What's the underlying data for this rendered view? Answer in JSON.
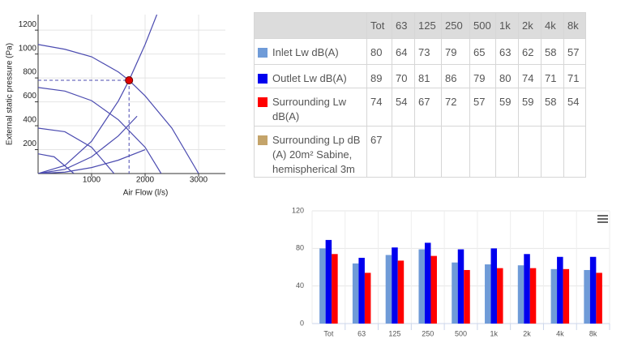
{
  "chart_data": [
    {
      "type": "line",
      "xlabel": "Air Flow (l/s)",
      "ylabel": "External static pressure (Pa)",
      "xlim": [
        0,
        3500
      ],
      "ylim": [
        0,
        1330
      ],
      "xticks": [
        1000,
        2000,
        3000
      ],
      "yticks": [
        200,
        400,
        600,
        800,
        1000,
        1200
      ],
      "grid": true,
      "color": "#4b4bb0",
      "series": [
        {
          "x": [
            0,
            500,
            1000,
            1500,
            1700,
            2000,
            2500,
            3000
          ],
          "values": [
            1080,
            1040,
            977,
            850,
            780,
            650,
            380,
            0
          ]
        },
        {
          "x": [
            0,
            500,
            1000,
            1500,
            2000,
            2300
          ],
          "values": [
            720,
            690,
            610,
            450,
            220,
            0
          ]
        },
        {
          "x": [
            0,
            500,
            1000,
            1420
          ],
          "values": [
            380,
            350,
            220,
            0
          ]
        },
        {
          "x": [
            0,
            300,
            670
          ],
          "values": [
            165,
            140,
            0
          ]
        },
        {
          "x": [
            0,
            500,
            1000,
            1500,
            1700,
            2000,
            2220
          ],
          "values": [
            0,
            67,
            270,
            607,
            780,
            1080,
            1330
          ]
        },
        {
          "x": [
            0,
            500,
            1000,
            1500,
            1850
          ],
          "values": [
            0,
            35,
            140,
            315,
            480
          ]
        },
        {
          "x": [
            0,
            500,
            1000,
            1500,
            2000
          ],
          "values": [
            0,
            12,
            50,
            112,
            200
          ]
        }
      ],
      "operating_point": {
        "x": 1700,
        "y": 780,
        "color": "#e00000"
      }
    },
    {
      "type": "bar",
      "categories": [
        "Tot",
        "63",
        "125",
        "250",
        "500",
        "1k",
        "2k",
        "4k",
        "8k"
      ],
      "ylim": [
        0,
        120
      ],
      "yticks": [
        0,
        40,
        80,
        120
      ],
      "grid": true,
      "series": [
        {
          "color": "#6f9bd8",
          "values": [
            80,
            64,
            73,
            79,
            65,
            63,
            62,
            58,
            57
          ]
        },
        {
          "color": "#0000ee",
          "values": [
            89,
            70,
            81,
            86,
            79,
            80,
            74,
            71,
            71
          ]
        },
        {
          "color": "#ff0000",
          "values": [
            74,
            54,
            67,
            72,
            57,
            59,
            59,
            58,
            54
          ]
        }
      ]
    }
  ],
  "table": {
    "columns": [
      "Tot",
      "63",
      "125",
      "250",
      "500",
      "1k",
      "2k",
      "4k",
      "8k"
    ],
    "rows": [
      {
        "label": "Inlet Lw dB(A)",
        "color": "#6f9bd8",
        "values": [
          80,
          64,
          73,
          79,
          65,
          63,
          62,
          58,
          57
        ]
      },
      {
        "label": "Outlet Lw dB(A)",
        "color": "#0000ee",
        "values": [
          89,
          70,
          81,
          86,
          79,
          80,
          74,
          71,
          71
        ]
      },
      {
        "label": "Surrounding Lw dB(A)",
        "color": "#ff0000",
        "values": [
          74,
          54,
          67,
          72,
          57,
          59,
          59,
          58,
          54
        ]
      },
      {
        "label": "Surrounding Lp dB (A) 20m² Sabine, hemispherical 3m",
        "color": "#c4a46a",
        "values": [
          67
        ]
      }
    ]
  }
}
